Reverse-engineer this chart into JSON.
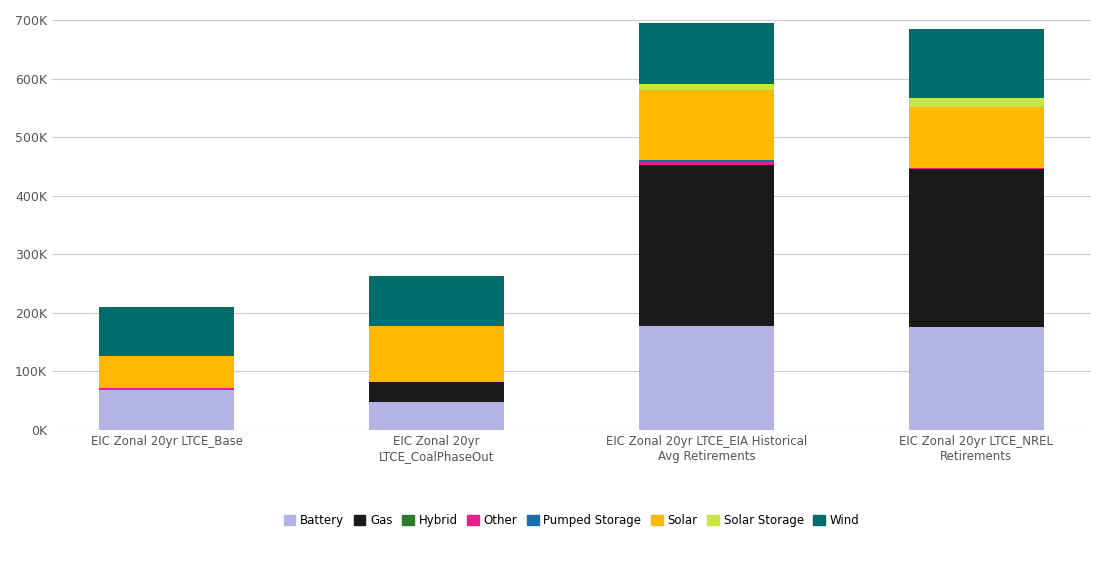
{
  "categories": [
    "EIC Zonal 20yr LTCE_Base",
    "EIC Zonal 20yr\nLTCE_CoalPhaseOut",
    "EIC Zonal 20yr LTCE_EIA Historical\nAvg Retirements",
    "EIC Zonal 20yr LTCE_NREL\nRetirements"
  ],
  "series": {
    "Battery": [
      67000,
      47000,
      178000,
      175000
    ],
    "Gas": [
      0,
      35000,
      275000,
      270000
    ],
    "Hybrid": [
      0,
      0,
      0,
      0
    ],
    "Other": [
      4000,
      0,
      5000,
      2000
    ],
    "Pumped Storage": [
      0,
      0,
      2000,
      0
    ],
    "Solar": [
      55000,
      95000,
      120000,
      105000
    ],
    "Solar Storage": [
      0,
      0,
      10000,
      15000
    ],
    "Wind": [
      83000,
      85000,
      105000,
      118000
    ]
  },
  "colors": {
    "Battery": "#b3b3e6",
    "Gas": "#1a1a1a",
    "Hybrid": "#2d7a2d",
    "Other": "#e91e8c",
    "Pumped Storage": "#1a6fa8",
    "Solar": "#ffb800",
    "Solar Storage": "#c8e640",
    "Wind": "#006d6d"
  },
  "ylim": [
    0,
    700000
  ],
  "yticks": [
    0,
    100000,
    200000,
    300000,
    400000,
    500000,
    600000,
    700000
  ],
  "ytick_labels": [
    "0K",
    "100K",
    "200K",
    "300K",
    "400K",
    "500K",
    "600K",
    "700K"
  ],
  "background_color": "#ffffff",
  "plot_area_color": "#ffffff",
  "grid_color": "#cccccc",
  "bar_width": 0.5
}
